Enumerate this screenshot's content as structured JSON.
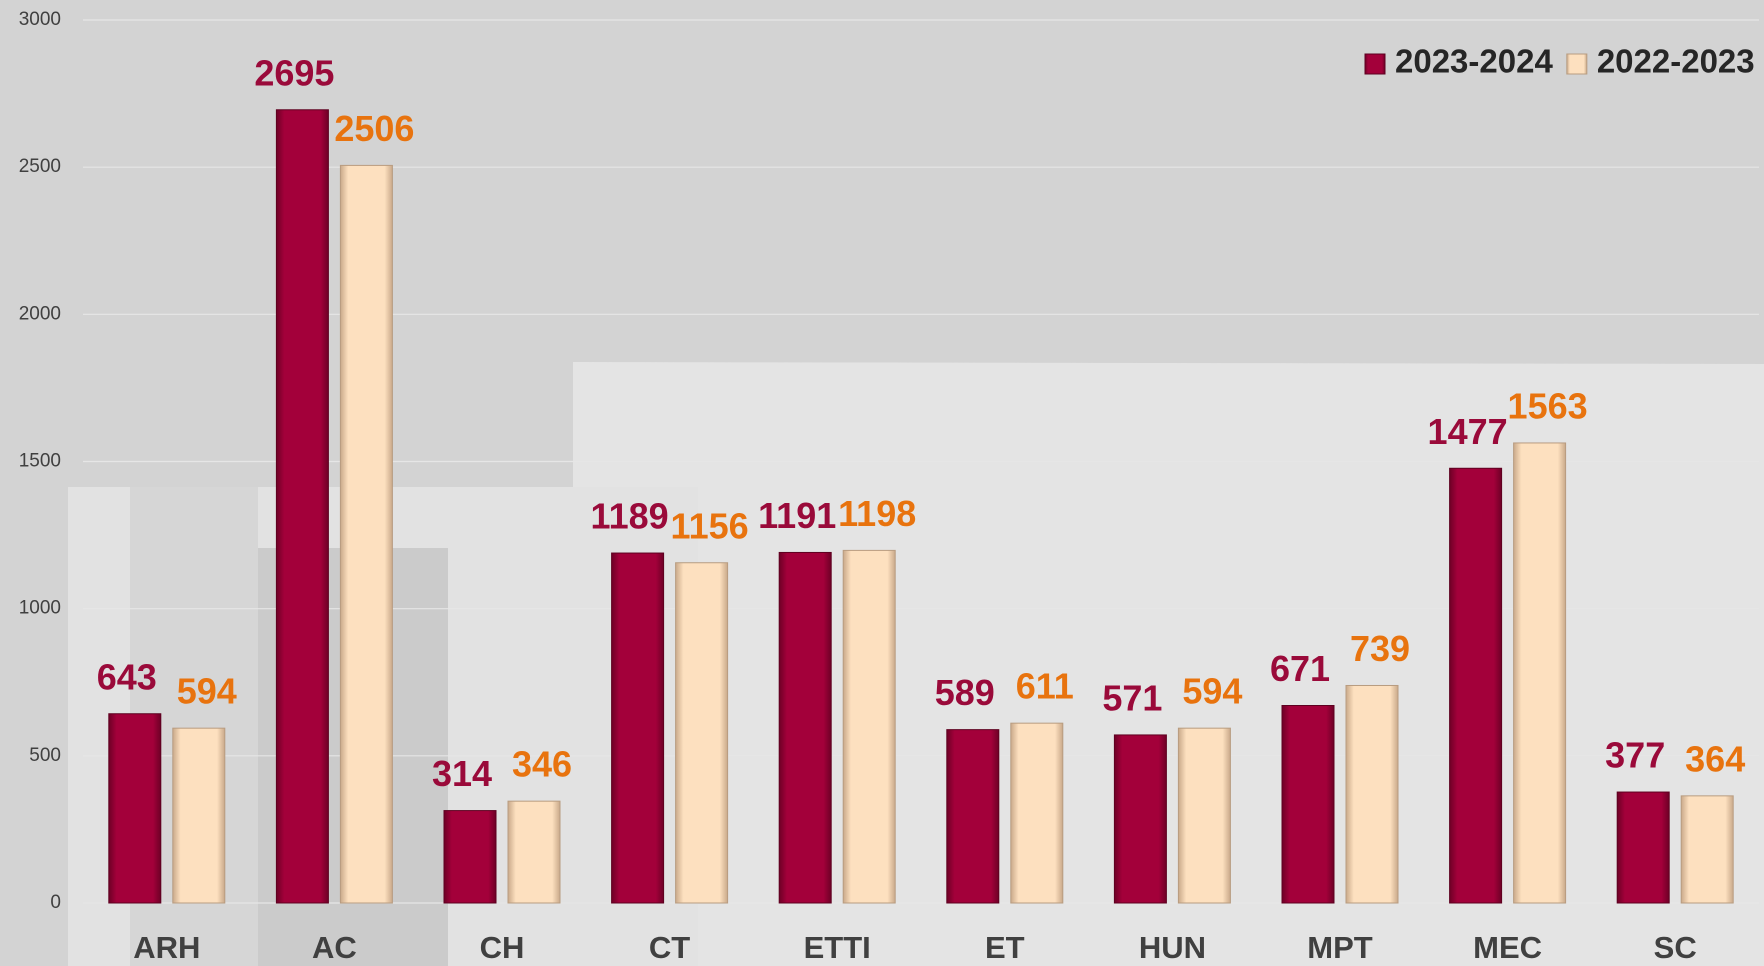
{
  "chart_data": {
    "type": "bar",
    "categories": [
      "ARH",
      "AC",
      "CH",
      "CT",
      "ETTI",
      "ET",
      "HUN",
      "MPT",
      "MEC",
      "SC"
    ],
    "series": [
      {
        "name": "2023-2024",
        "color": "#a3003a",
        "label_color": "#9a0a3a",
        "values": [
          643,
          2695,
          314,
          1189,
          1191,
          589,
          571,
          671,
          1477,
          377
        ]
      },
      {
        "name": "2022-2023",
        "color": "#fde0bf",
        "label_color": "#e8730e",
        "values": [
          594,
          2506,
          346,
          1156,
          1198,
          611,
          594,
          739,
          1563,
          364
        ]
      }
    ],
    "ylim": [
      0,
      3000
    ],
    "yticks": [
      0,
      500,
      1000,
      1500,
      2000,
      2500,
      3000
    ],
    "grid": true,
    "legend": "top-right"
  }
}
